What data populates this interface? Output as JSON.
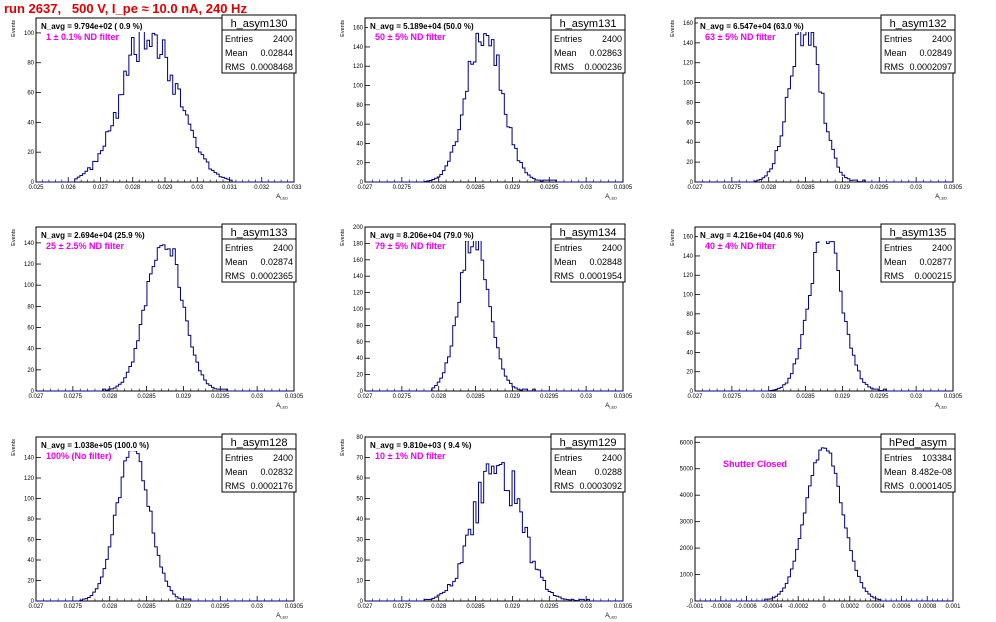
{
  "title": "run 2637,   500 V, I_pe ≈ 10.0 nA, 240 Hz",
  "colors": {
    "title": "#e00000",
    "hist": "#000080",
    "label": "#ee00ee",
    "frame": "#000000"
  },
  "stat_labels": {
    "entries": "Entries",
    "mean": "Mean",
    "rms": "RMS"
  },
  "chart_data": [
    {
      "type": "histogram",
      "name": "h_asym130",
      "xlabel": "A_{LED}",
      "ylabel": "Events",
      "xlim": [
        0.025,
        0.033
      ],
      "ylim": [
        0,
        110
      ],
      "xticks": [
        0.025,
        0.026,
        0.027,
        0.028,
        0.029,
        0.03,
        0.031,
        0.032,
        0.033
      ],
      "xtick_labels": [
        "0.025",
        "0.026",
        "0.027",
        "0.028",
        "0.029",
        "0.03",
        "0.031",
        "0.032",
        "0.033"
      ],
      "yticks": [
        0,
        20,
        40,
        60,
        80,
        100
      ],
      "ytick_labels": [
        "0",
        "20",
        "40",
        "60",
        "80",
        "100"
      ],
      "peak_x": 0.02855,
      "peak_y": 102,
      "sigma": 0.00085,
      "noise": 0.18,
      "tail_low": 0.0262,
      "tail_high": 0.0311,
      "navg": "N_avg = 9.794e+02 ( 0.9 %)",
      "filter": "1 ± 0.1% ND filter",
      "stats": {
        "entries": "2400",
        "mean": "0.02844",
        "rms": "0.0008468"
      }
    },
    {
      "type": "histogram",
      "name": "h_asym131",
      "xlabel": "A_{LED}",
      "ylabel": "Events",
      "xlim": [
        0.027,
        0.0305
      ],
      "ylim": [
        0,
        170
      ],
      "xticks": [
        0.027,
        0.0275,
        0.028,
        0.0285,
        0.029,
        0.0295,
        0.03,
        0.0305
      ],
      "xtick_labels": [
        "0.027",
        "0.0275",
        "0.028",
        "0.0285",
        "0.029",
        "0.0295",
        "0.03",
        "0.0305"
      ],
      "yticks": [
        0,
        20,
        40,
        60,
        80,
        100,
        120,
        140,
        160
      ],
      "ytick_labels": [
        "0",
        "20",
        "40",
        "60",
        "80",
        "100",
        "120",
        "140",
        "160"
      ],
      "peak_x": 0.02862,
      "peak_y": 160,
      "sigma": 0.00024,
      "noise": 0.12,
      "tail_low": 0.0278,
      "tail_high": 0.0296,
      "navg": "N_avg = 5.189e+04 (50.0 %)",
      "filter": "50 ± 5% ND filter",
      "stats": {
        "entries": "2400",
        "mean": "0.02863",
        "rms": "0.000236"
      }
    },
    {
      "type": "histogram",
      "name": "h_asym132",
      "xlabel": "A_{LED}",
      "ylabel": "Events",
      "xlim": [
        0.027,
        0.0305
      ],
      "ylim": [
        0,
        165
      ],
      "xticks": [
        0.027,
        0.0275,
        0.028,
        0.0285,
        0.029,
        0.0295,
        0.03,
        0.0305
      ],
      "xtick_labels": [
        "0.027",
        "0.0275",
        "0.028",
        "0.0285",
        "0.029",
        "0.0295",
        "0.03",
        "0.0305"
      ],
      "yticks": [
        0,
        20,
        40,
        60,
        80,
        100,
        120,
        140,
        160
      ],
      "ytick_labels": [
        "0",
        "20",
        "40",
        "60",
        "80",
        "100",
        "120",
        "140",
        "160"
      ],
      "peak_x": 0.02849,
      "peak_y": 158,
      "sigma": 0.00021,
      "noise": 0.12,
      "tail_low": 0.0278,
      "tail_high": 0.0293,
      "navg": "N_avg = 6.547e+04 (63.0 %)",
      "filter": "63 ± 5% ND filter",
      "stats": {
        "entries": "2400",
        "mean": "0.02849",
        "rms": "0.0002097"
      }
    },
    {
      "type": "histogram",
      "name": "h_asym133",
      "xlabel": "A_{LED}",
      "ylabel": "Events",
      "xlim": [
        0.027,
        0.0305
      ],
      "ylim": [
        0,
        155
      ],
      "xticks": [
        0.027,
        0.0275,
        0.028,
        0.0285,
        0.029,
        0.0295,
        0.03,
        0.0305
      ],
      "xtick_labels": [
        "0.027",
        "0.0275",
        "0.028",
        "0.0285",
        "0.029",
        "0.0295",
        "0.03",
        "0.0305"
      ],
      "yticks": [
        0,
        20,
        40,
        60,
        80,
        100,
        120,
        140
      ],
      "ytick_labels": [
        "0",
        "20",
        "40",
        "60",
        "80",
        "100",
        "120",
        "140"
      ],
      "peak_x": 0.02874,
      "peak_y": 145,
      "sigma": 0.00024,
      "noise": 0.08,
      "tail_low": 0.0279,
      "tail_high": 0.0296,
      "navg": "N_avg = 2.694e+04 (25.9 %)",
      "filter": "25 ± 2.5% ND filter",
      "stats": {
        "entries": "2400",
        "mean": "0.02874",
        "rms": "0.0002365"
      }
    },
    {
      "type": "histogram",
      "name": "h_asym134",
      "xlabel": "A_{LED}",
      "ylabel": "Events",
      "xlim": [
        0.027,
        0.0305
      ],
      "ylim": [
        0,
        200
      ],
      "xticks": [
        0.027,
        0.0275,
        0.028,
        0.0285,
        0.029,
        0.0295,
        0.03,
        0.0305
      ],
      "xtick_labels": [
        "0.027",
        "0.0275",
        "0.028",
        "0.0285",
        "0.029",
        "0.0295",
        "0.03",
        "0.0305"
      ],
      "yticks": [
        0,
        20,
        40,
        60,
        80,
        100,
        120,
        140,
        160,
        180,
        200
      ],
      "ytick_labels": [
        "0",
        "20",
        "40",
        "60",
        "80",
        "100",
        "120",
        "140",
        "160",
        "180",
        "200"
      ],
      "peak_x": 0.02848,
      "peak_y": 188,
      "sigma": 0.0002,
      "noise": 0.1,
      "tail_low": 0.0279,
      "tail_high": 0.0293,
      "navg": "N_avg = 8.206e+04 (79.0 %)",
      "filter": "79 ± 5% ND filter",
      "stats": {
        "entries": "2400",
        "mean": "0.02848",
        "rms": "0.0001954"
      }
    },
    {
      "type": "histogram",
      "name": "h_asym135",
      "xlabel": "A_{LED}",
      "ylabel": "Events",
      "xlim": [
        0.027,
        0.0305
      ],
      "ylim": [
        0,
        170
      ],
      "xticks": [
        0.027,
        0.0275,
        0.028,
        0.0285,
        0.029,
        0.0295,
        0.03,
        0.0305
      ],
      "xtick_labels": [
        "0.027",
        "0.0275",
        "0.028",
        "0.0285",
        "0.029",
        "0.0295",
        "0.03",
        "0.0305"
      ],
      "yticks": [
        0,
        20,
        40,
        60,
        80,
        100,
        120,
        140,
        160
      ],
      "ytick_labels": [
        "0",
        "20",
        "40",
        "60",
        "80",
        "100",
        "120",
        "140",
        "160"
      ],
      "peak_x": 0.02877,
      "peak_y": 162,
      "sigma": 0.00022,
      "noise": 0.1,
      "tail_low": 0.028,
      "tail_high": 0.0296,
      "navg": "N_avg = 4.216e+04 (40.6 %)",
      "filter": "40 ± 4% ND filter",
      "stats": {
        "entries": "2400",
        "mean": "0.02877",
        "rms": "0.000215"
      }
    },
    {
      "type": "histogram",
      "name": "h_asym128",
      "xlabel": "A_{LED}",
      "ylabel": "Events",
      "xlim": [
        0.027,
        0.0305
      ],
      "ylim": [
        0,
        160
      ],
      "xticks": [
        0.027,
        0.0275,
        0.028,
        0.0285,
        0.029,
        0.0295,
        0.03,
        0.0305
      ],
      "xtick_labels": [
        "0.027",
        "0.0275",
        "0.028",
        "0.0285",
        "0.029",
        "0.0295",
        "0.03",
        "0.0305"
      ],
      "yticks": [
        0,
        20,
        40,
        60,
        80,
        100,
        120,
        140
      ],
      "ytick_labels": [
        "0",
        "20",
        "40",
        "60",
        "80",
        "100",
        "120",
        "140"
      ],
      "peak_x": 0.02832,
      "peak_y": 150,
      "sigma": 0.00022,
      "noise": 0.08,
      "tail_low": 0.0276,
      "tail_high": 0.0291,
      "navg": "N_avg = 1.038e+05 (100.0 %)",
      "filter": "100% (No filter)",
      "stats": {
        "entries": "2400",
        "mean": "0.02832",
        "rms": "0.0002176"
      }
    },
    {
      "type": "histogram",
      "name": "h_asym129",
      "xlabel": "A_{LED}",
      "ylabel": "Events",
      "xlim": [
        0.027,
        0.0305
      ],
      "ylim": [
        0,
        80
      ],
      "xticks": [
        0.027,
        0.0275,
        0.028,
        0.0285,
        0.029,
        0.0295,
        0.03,
        0.0305
      ],
      "xtick_labels": [
        "0.027",
        "0.0275",
        "0.028",
        "0.0285",
        "0.029",
        "0.0295",
        "0.03",
        "0.0305"
      ],
      "yticks": [
        0,
        10,
        20,
        30,
        40,
        50,
        60,
        70,
        80
      ],
      "ytick_labels": [
        "0",
        "10",
        "20",
        "30",
        "40",
        "50",
        "60",
        "70",
        "80"
      ],
      "peak_x": 0.0288,
      "peak_y": 68,
      "sigma": 0.00031,
      "noise": 0.2,
      "tail_low": 0.0278,
      "tail_high": 0.0301,
      "navg": "N_avg = 9.810e+03 ( 9.4 %)",
      "filter": "10 ± 1% ND filter",
      "stats": {
        "entries": "2400",
        "mean": "0.0288",
        "rms": "0.0003092"
      }
    },
    {
      "type": "histogram",
      "name": "hPed_asym",
      "xlabel": "",
      "ylabel": "",
      "xlim": [
        -0.001,
        0.001
      ],
      "ylim": [
        0,
        6200
      ],
      "xticks": [
        -0.001,
        -0.0008,
        -0.0006,
        -0.0004,
        -0.0002,
        0,
        0.0002,
        0.0004,
        0.0006,
        0.0008,
        0.001
      ],
      "xtick_labels": [
        "-0.001",
        "-0.0008",
        "-0.0006",
        "-0.0004",
        "-0.0002",
        "0",
        "0.0002",
        "0.0004",
        "0.0006",
        "0.0008",
        "0.001"
      ],
      "yticks": [
        0,
        1000,
        2000,
        3000,
        4000,
        5000,
        6000
      ],
      "ytick_labels": [
        "0",
        "1000",
        "2000",
        "3000",
        "4000",
        "5000",
        "6000"
      ],
      "peak_x": 0.0,
      "peak_y": 5850,
      "sigma": 0.00014,
      "noise": 0.03,
      "tail_low": -0.00045,
      "tail_high": 0.00045,
      "navg": "",
      "filter": "Shutter Closed",
      "stats": {
        "entries": "103384",
        "mean": "8.482e-08",
        "rms": "0.0001405"
      }
    }
  ]
}
